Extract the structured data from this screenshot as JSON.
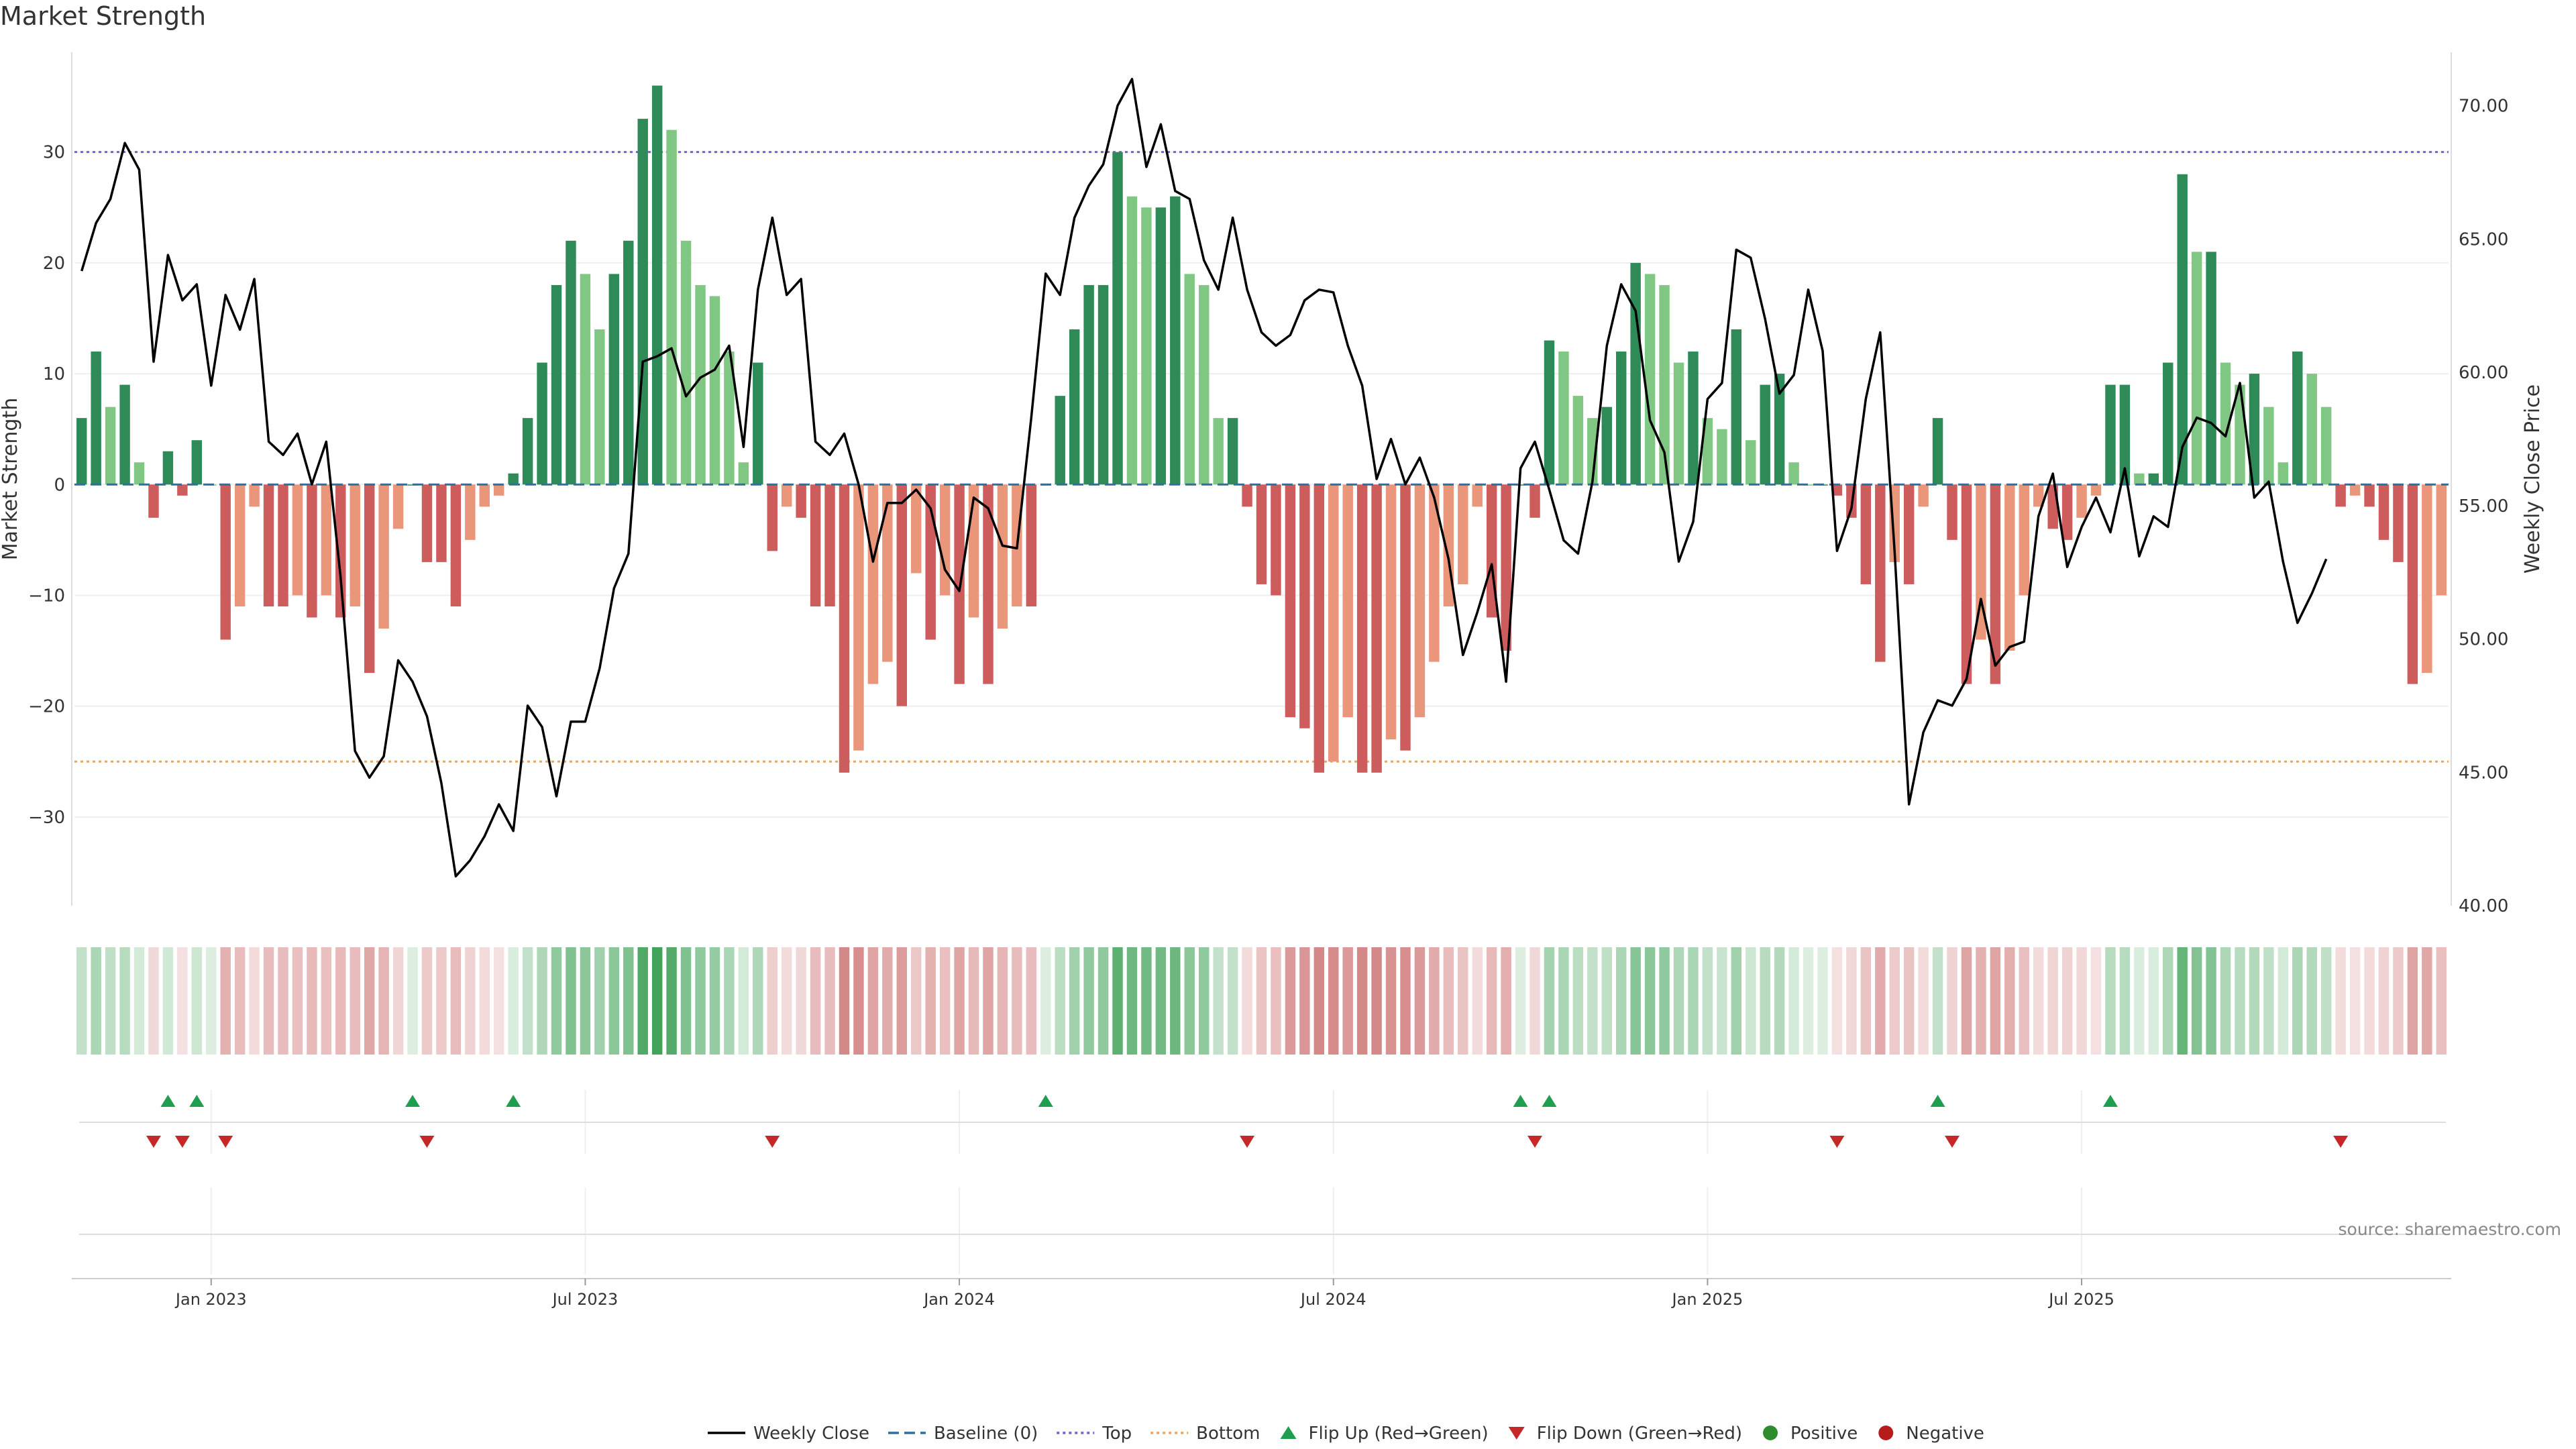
{
  "chart_data": {
    "type": "bar",
    "title": "Market Strength",
    "source": "source: sharemaestro.com",
    "ylabel_left": "Market Strength",
    "ylabel_right": "Weekly Close Price",
    "ylim_left": [
      -38,
      39
    ],
    "ylim_right": [
      40,
      72
    ],
    "yticks_left": [
      -30,
      -20,
      -10,
      0,
      10,
      20,
      30
    ],
    "yticks_right": [
      "40.00",
      "45.00",
      "50.00",
      "55.00",
      "60.00",
      "65.00",
      "70.00"
    ],
    "xticks": [
      {
        "label": "Jan 2023",
        "index": 9.5
      },
      {
        "label": "Jul 2023",
        "index": 35.5
      },
      {
        "label": "Jan 2024",
        "index": 61.5
      },
      {
        "label": "Jul 2024",
        "index": 87.5
      },
      {
        "label": "Jan 2025",
        "index": 113.5
      },
      {
        "label": "Jul 2025",
        "index": 139.5
      }
    ],
    "reference_lines": {
      "top": 30,
      "bottom": -25,
      "baseline": 0
    },
    "strength": [
      6,
      12,
      7,
      9,
      2,
      -3,
      3,
      -1,
      4,
      0,
      -14,
      -11,
      -2,
      -11,
      -11,
      -10,
      -12,
      -10,
      -12,
      -11,
      -17,
      -13,
      -4,
      0,
      -7,
      -7,
      -11,
      -5,
      -2,
      -1,
      1,
      6,
      11,
      18,
      22,
      19,
      14,
      19,
      22,
      33,
      36,
      32,
      22,
      18,
      17,
      12,
      2,
      11,
      -6,
      -2,
      -3,
      -11,
      -11,
      -26,
      -24,
      -18,
      -16,
      -20,
      -8,
      -14,
      -10,
      -18,
      -12,
      -18,
      -13,
      -11,
      -11,
      0,
      8,
      14,
      18,
      18,
      30,
      26,
      25,
      25,
      26,
      19,
      18,
      6,
      6,
      -2,
      -9,
      -10,
      -21,
      -22,
      -26,
      -25,
      -21,
      -26,
      -26,
      -23,
      -24,
      -21,
      -16,
      -11,
      -9,
      -2,
      -12,
      -15,
      0,
      -3,
      13,
      12,
      8,
      6,
      7,
      12,
      20,
      19,
      18,
      11,
      12,
      6,
      5,
      14,
      4,
      9,
      10,
      2,
      0,
      0,
      -1,
      -3,
      -9,
      -16,
      -7,
      -9,
      -2,
      6,
      -5,
      -18,
      -14,
      -18,
      -15,
      -10,
      -2,
      -4,
      -5,
      -3,
      -1,
      9,
      9,
      1,
      1,
      11,
      28,
      21,
      21,
      11,
      9,
      10,
      7,
      2,
      12,
      10,
      7,
      -2,
      -1,
      -2,
      -5,
      -7,
      -18,
      -17,
      -10
    ],
    "weekly_close": [
      63.8,
      65.6,
      66.5,
      68.6,
      67.6,
      60.4,
      64.4,
      62.7,
      63.3,
      59.5,
      62.9,
      61.6,
      63.5,
      57.4,
      56.9,
      57.7,
      55.8,
      57.4,
      52.3,
      45.8,
      44.8,
      45.6,
      49.2,
      48.4,
      47.1,
      44.6,
      41.1,
      41.7,
      42.6,
      43.8,
      42.8,
      47.5,
      46.7,
      44.1,
      46.9,
      46.9,
      48.9,
      51.9,
      53.2,
      60.4,
      60.6,
      60.9,
      59.1,
      59.8,
      60.1,
      61.0,
      57.2,
      63.1,
      65.8,
      62.9,
      63.5,
      57.4,
      56.9,
      57.7,
      55.8,
      52.9,
      55.1,
      55.1,
      55.6,
      54.9,
      52.6,
      51.8,
      55.3,
      54.9,
      53.5,
      53.4,
      58.3,
      63.7,
      62.9,
      65.8,
      67.0,
      67.8,
      70.0,
      71.0,
      67.7,
      69.3,
      66.8,
      66.5,
      64.2,
      63.1,
      65.8,
      63.1,
      61.5,
      61.0,
      61.4,
      62.7,
      63.1,
      63.0,
      61.0,
      59.5,
      56.0,
      57.5,
      55.8,
      56.8,
      55.3,
      53.0,
      49.4,
      51.0,
      52.8,
      48.4,
      56.4,
      57.4,
      55.6,
      53.7,
      53.2,
      55.9,
      61.0,
      63.3,
      62.3,
      58.2,
      57.0,
      52.9,
      54.4,
      59.0,
      59.6,
      64.6,
      64.3,
      62.0,
      59.2,
      59.9,
      63.1,
      60.8,
      53.3,
      54.9,
      59.0,
      61.5,
      53.3,
      43.8,
      46.5,
      47.7,
      47.5,
      48.5,
      51.5,
      49.0,
      49.7,
      49.9,
      54.6,
      56.2,
      52.7,
      54.2,
      55.3,
      54.0,
      56.4,
      53.1,
      54.6,
      54.2,
      57.2,
      58.3,
      58.1,
      57.6,
      59.6,
      55.3,
      55.9,
      52.9,
      50.6,
      51.7,
      53.0
    ],
    "legend": [
      {
        "label": "Weekly Close",
        "kind": "line",
        "color": "#000000"
      },
      {
        "label": "Baseline (0)",
        "kind": "dashed",
        "color": "#2f6f9f"
      },
      {
        "label": "Top",
        "kind": "dotted",
        "color": "#7b5ec6"
      },
      {
        "label": "Bottom",
        "kind": "dotted",
        "color": "#f0a35c"
      },
      {
        "label": "Flip Up (Red→Green)",
        "kind": "triangle-up",
        "color": "#1e9e4e"
      },
      {
        "label": "Flip Down (Green→Red)",
        "kind": "triangle-down",
        "color": "#c62828"
      },
      {
        "label": "Positive",
        "kind": "dot",
        "color": "#2e8b2e"
      },
      {
        "label": "Negative",
        "kind": "dot",
        "color": "#b71c1c"
      }
    ],
    "colors": {
      "positive_strong": "#2e8b57",
      "positive_weak": "#81c784",
      "negative_strong": "#cd5c5c",
      "negative_weak": "#e9967a",
      "top_line": "#7b5ec6",
      "bottom_line": "#f0a35c",
      "baseline": "#2f6f9f",
      "heat_positive": "#43a35a",
      "heat_negative": "#c96464"
    }
  }
}
